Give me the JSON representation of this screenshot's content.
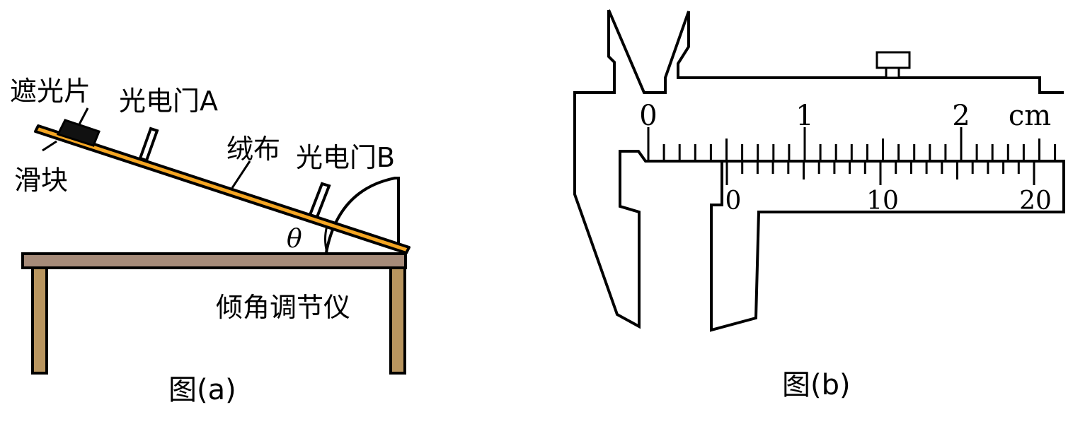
{
  "figure_a": {
    "caption": "图(a)",
    "labels": {
      "shade": "遮光片",
      "gate_a": "光电门A",
      "cloth": "绒布",
      "gate_b": "光电门B",
      "slider": "滑块",
      "angle": "θ",
      "device": "倾角调节仪"
    },
    "colors": {
      "plank": "#f5a623",
      "table_top": "#a68b79",
      "table_leg": "#b8955f"
    }
  },
  "figure_b": {
    "caption": "图(b)",
    "main_scale": {
      "labels": [
        "0",
        "1",
        "2"
      ],
      "unit": "cm"
    },
    "vernier_scale": {
      "labels": [
        "0",
        "10",
        "20"
      ]
    }
  }
}
